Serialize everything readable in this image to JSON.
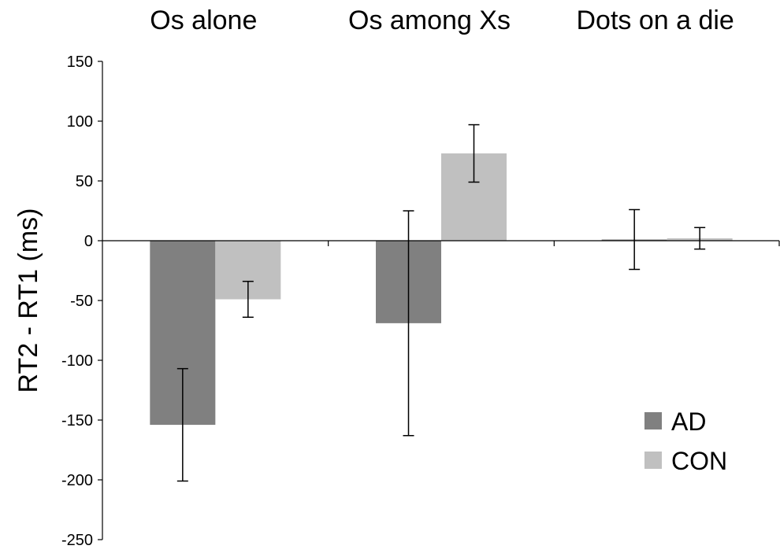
{
  "chart_data": {
    "type": "bar",
    "categories": [
      "Os alone",
      "Os among Xs",
      "Dots on a die"
    ],
    "ylabel": "RT2 - RT1 (ms)",
    "xlabel": "",
    "ylim": [
      -250,
      150
    ],
    "yticks": [
      150,
      100,
      50,
      0,
      -50,
      -100,
      -150,
      -200,
      -250
    ],
    "grid": false,
    "legend_position": "bottom-right",
    "series": [
      {
        "name": "AD",
        "color": "#808080",
        "values": [
          -154,
          -69,
          1
        ],
        "error": [
          47,
          94,
          25
        ]
      },
      {
        "name": "CON",
        "color": "#c0c0c0",
        "values": [
          -49,
          73,
          2
        ],
        "error": [
          15,
          24,
          9
        ]
      }
    ]
  }
}
